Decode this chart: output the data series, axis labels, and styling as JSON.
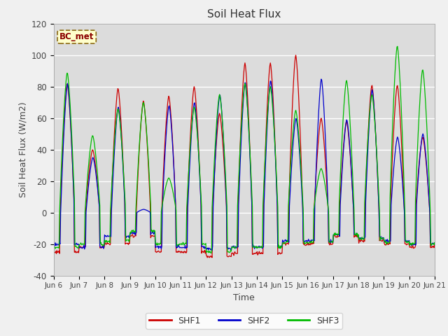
{
  "title": "Soil Heat Flux",
  "ylabel": "Soil Heat Flux (W/m2)",
  "xlabel": "Time",
  "ylim": [
    -40,
    120
  ],
  "xlim": [
    0,
    360
  ],
  "plot_bg_color": "#dcdcdc",
  "annotation": "BC_met",
  "legend_labels": [
    "SHF1",
    "SHF2",
    "SHF3"
  ],
  "legend_colors": [
    "#cc0000",
    "#0000cc",
    "#00bb00"
  ],
  "x_tick_labels": [
    "Jun 6",
    "Jun 7",
    "Jun 8",
    "Jun 9",
    "Jun 10",
    "Jun 11",
    "Jun 12",
    "Jun 13",
    "Jun 14",
    "Jun 15",
    "Jun 16",
    "Jun 17",
    "Jun 18",
    "Jun 19",
    "Jun 20",
    "Jun 21"
  ],
  "x_tick_positions": [
    0,
    24,
    48,
    72,
    96,
    120,
    144,
    168,
    192,
    216,
    240,
    264,
    288,
    312,
    336,
    360
  ],
  "yticks": [
    -40,
    -20,
    0,
    20,
    40,
    60,
    80,
    100,
    120
  ],
  "fig_bg_color": "#f0f0f0"
}
